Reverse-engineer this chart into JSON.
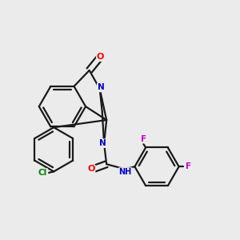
{
  "background_color": "#ebebeb",
  "bond_color": "#1a1a1a",
  "atom_colors": {
    "O": "#ff0000",
    "N": "#0000cc",
    "Cl": "#008000",
    "F": "#cc00cc",
    "H": "#777777"
  }
}
